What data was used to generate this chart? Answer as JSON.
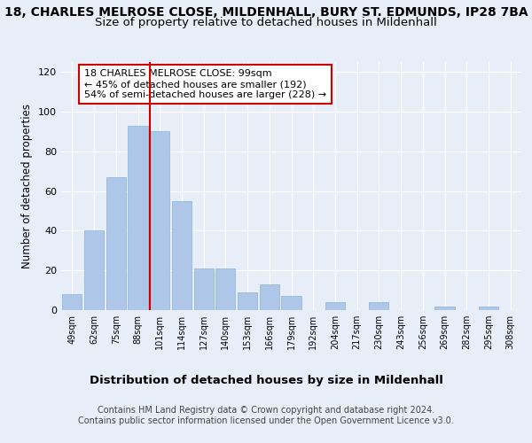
{
  "title1": "18, CHARLES MELROSE CLOSE, MILDENHALL, BURY ST. EDMUNDS, IP28 7BA",
  "title2": "Size of property relative to detached houses in Mildenhall",
  "xlabel": "Distribution of detached houses by size in Mildenhall",
  "ylabel": "Number of detached properties",
  "bins": [
    "49sqm",
    "62sqm",
    "75sqm",
    "88sqm",
    "101sqm",
    "114sqm",
    "127sqm",
    "140sqm",
    "153sqm",
    "166sqm",
    "179sqm",
    "192sqm",
    "204sqm",
    "217sqm",
    "230sqm",
    "243sqm",
    "256sqm",
    "269sqm",
    "282sqm",
    "295sqm",
    "308sqm"
  ],
  "values": [
    8,
    40,
    67,
    93,
    90,
    55,
    21,
    21,
    9,
    13,
    7,
    0,
    4,
    0,
    4,
    0,
    0,
    2,
    0,
    2,
    0
  ],
  "bar_color": "#aec6e8",
  "bar_edge_color": "#8ab4d8",
  "vline_color": "#cc0000",
  "annotation_text": "18 CHARLES MELROSE CLOSE: 99sqm\n← 45% of detached houses are smaller (192)\n54% of semi-detached houses are larger (228) →",
  "annotation_box_color": "#ffffff",
  "annotation_box_edge": "#cc0000",
  "ylim": [
    0,
    125
  ],
  "yticks": [
    0,
    20,
    40,
    60,
    80,
    100,
    120
  ],
  "footer1": "Contains HM Land Registry data © Crown copyright and database right 2024.",
  "footer2": "Contains public sector information licensed under the Open Government Licence v3.0.",
  "bg_color": "#e8eef8",
  "plot_bg_color": "#e8eef8",
  "title1_fontsize": 10,
  "title2_fontsize": 9.5,
  "xlabel_fontsize": 9.5,
  "ylabel_fontsize": 8.5,
  "footer_fontsize": 7,
  "annotation_fontsize": 8
}
